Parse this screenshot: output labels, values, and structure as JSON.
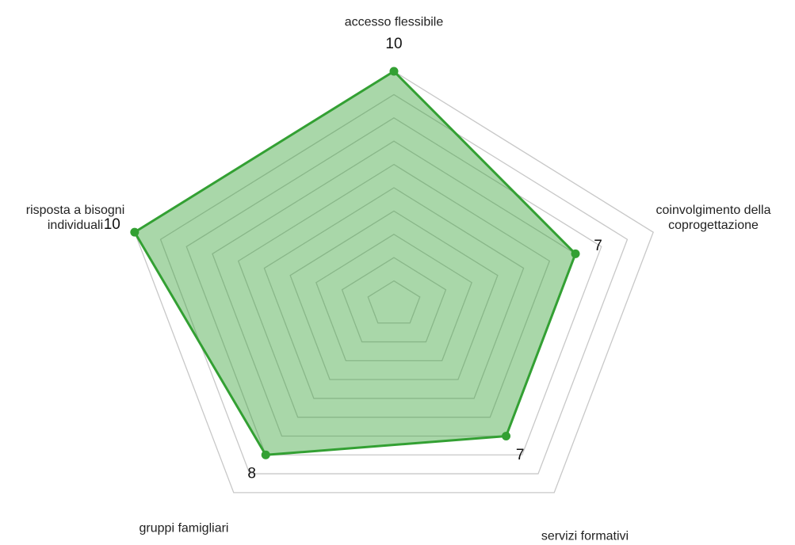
{
  "chart_data": {
    "type": "radar",
    "categories": [
      "accesso flessibile",
      "coinvolgimento della coprogettazione",
      "servizi formativi",
      "gruppi famigliari",
      "risposta a bisogni individuali"
    ],
    "values": [
      10,
      7,
      7,
      8,
      10
    ],
    "color": "#33a033",
    "rlim": [
      0,
      10
    ],
    "rticks": [
      1,
      2,
      3,
      4,
      5,
      6,
      7,
      8,
      9,
      10
    ],
    "grid": true
  }
}
